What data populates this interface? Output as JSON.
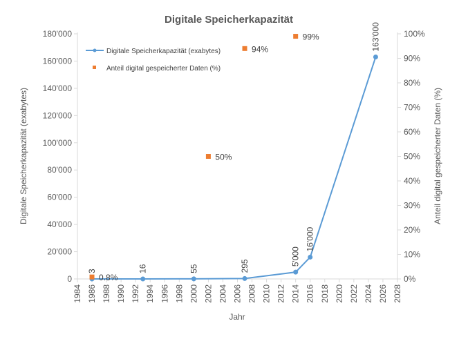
{
  "chart_data": {
    "type": "line",
    "title": "Digitale Speicherkapazität",
    "xlabel": "Jahr",
    "ylabel": "Digitale Speicherkapazität  (exabytes)",
    "y2label": "Anteil digital gespeicherter Daten (%)",
    "xlim": [
      1984,
      2028
    ],
    "ylim": [
      0,
      180000
    ],
    "y2lim": [
      0,
      100
    ],
    "x_ticks": [
      "1984",
      "1986",
      "1988",
      "1990",
      "1992",
      "1994",
      "1996",
      "1998",
      "2000",
      "2002",
      "2004",
      "2006",
      "2008",
      "2010",
      "2012",
      "2014",
      "2016",
      "2018",
      "2020",
      "2022",
      "2024",
      "2026",
      "2028"
    ],
    "y_ticks": [
      "0",
      "20'000",
      "40'000",
      "60'000",
      "80'000",
      "100'000",
      "120'000",
      "140'000",
      "160'000",
      "180'000"
    ],
    "y2_ticks": [
      "0%",
      "10%",
      "20%",
      "30%",
      "40%",
      "50%",
      "60%",
      "70%",
      "80%",
      "90%",
      "100%"
    ],
    "legend_position": "top-left",
    "series": [
      {
        "name": "Digitale Speicherkapazität (exabytes)",
        "type": "line",
        "axis": "left",
        "color": "#5b9bd5",
        "x": [
          1986,
          1993,
          2000,
          2007,
          2014,
          2016,
          2025
        ],
        "values": [
          3,
          16,
          55,
          295,
          5000,
          16000,
          163000
        ],
        "labels": [
          "3",
          "16",
          "55",
          "295",
          "5'000",
          "16'000",
          "163'000"
        ]
      },
      {
        "name": "Anteil digital gespeicherter Daten (%)",
        "type": "scatter",
        "axis": "right",
        "color": "#ed7d31",
        "x": [
          1986,
          2002,
          2007,
          2014
        ],
        "values": [
          0.8,
          50,
          94,
          99
        ],
        "labels": [
          "0.8%",
          "50%",
          "94%",
          "99%"
        ]
      }
    ]
  }
}
